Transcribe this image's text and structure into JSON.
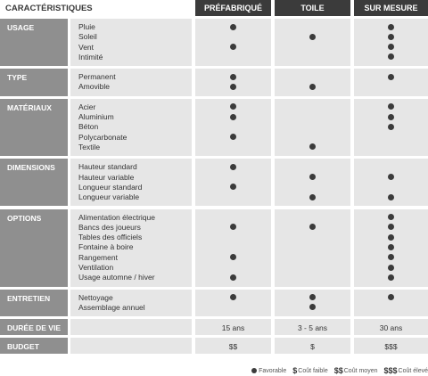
{
  "header": {
    "corner": "CARACTÉRISTIQUES",
    "columns": [
      "PRÉFABRIQUÉ",
      "TOILE",
      "SUR MESURE"
    ]
  },
  "sections": [
    {
      "label": "USAGE",
      "items": [
        {
          "name": "Pluie",
          "marks": [
            true,
            false,
            true
          ]
        },
        {
          "name": "Soleil",
          "marks": [
            false,
            true,
            true
          ]
        },
        {
          "name": "Vent",
          "marks": [
            true,
            false,
            true
          ]
        },
        {
          "name": "Intimité",
          "marks": [
            false,
            false,
            true
          ]
        }
      ]
    },
    {
      "label": "TYPE",
      "items": [
        {
          "name": "Permanent",
          "marks": [
            true,
            false,
            true
          ]
        },
        {
          "name": "Amovible",
          "marks": [
            true,
            true,
            false
          ]
        }
      ]
    },
    {
      "label": "MATÉRIAUX",
      "items": [
        {
          "name": "Acier",
          "marks": [
            true,
            false,
            true
          ]
        },
        {
          "name": "Aluminium",
          "marks": [
            true,
            false,
            true
          ]
        },
        {
          "name": "Béton",
          "marks": [
            false,
            false,
            true
          ]
        },
        {
          "name": "Polycarbonate",
          "marks": [
            true,
            false,
            false
          ]
        },
        {
          "name": "Textile",
          "marks": [
            false,
            true,
            false
          ]
        }
      ]
    },
    {
      "label": "DIMENSIONS",
      "items": [
        {
          "name": "Hauteur standard",
          "marks": [
            true,
            false,
            false
          ]
        },
        {
          "name": "Hauteur variable",
          "marks": [
            false,
            true,
            true
          ]
        },
        {
          "name": "Longueur standard",
          "marks": [
            true,
            false,
            false
          ]
        },
        {
          "name": "Longueur variable",
          "marks": [
            false,
            true,
            true
          ]
        }
      ]
    },
    {
      "label": "OPTIONS",
      "items": [
        {
          "name": "Alimentation électrique",
          "marks": [
            false,
            false,
            true
          ]
        },
        {
          "name": "Bancs des joueurs",
          "marks": [
            true,
            true,
            true
          ]
        },
        {
          "name": "Tables des officiels",
          "marks": [
            false,
            false,
            true
          ]
        },
        {
          "name": "Fontaine à boire",
          "marks": [
            false,
            false,
            true
          ]
        },
        {
          "name": "Rangement",
          "marks": [
            true,
            false,
            true
          ]
        },
        {
          "name": "Ventilation",
          "marks": [
            false,
            false,
            true
          ]
        },
        {
          "name": "Usage automne / hiver",
          "marks": [
            true,
            false,
            true
          ]
        }
      ]
    },
    {
      "label": "ENTRETIEN",
      "items": [
        {
          "name": "Nettoyage",
          "marks": [
            true,
            true,
            true
          ]
        },
        {
          "name": "Assemblage annuel",
          "marks": [
            false,
            true,
            false
          ]
        }
      ]
    }
  ],
  "values": [
    {
      "label": "DURÉE DE VIE",
      "cells": [
        "15 ans",
        "3 - 5 ans",
        "30 ans"
      ]
    },
    {
      "label": "BUDGET",
      "cells": [
        "$$",
        "$",
        "$$$"
      ]
    }
  ],
  "legend": {
    "favorable": "Favorable",
    "low_symbol": "$",
    "low": "Coût faible",
    "mid_symbol": "$$",
    "mid": "Coût moyen",
    "high_symbol": "$$$",
    "high": "Coût élevé"
  },
  "colors": {
    "header": "#3b3b3b",
    "category": "#8f8f8f",
    "block": "#e6e6e6",
    "dot": "#3b3b3b"
  }
}
